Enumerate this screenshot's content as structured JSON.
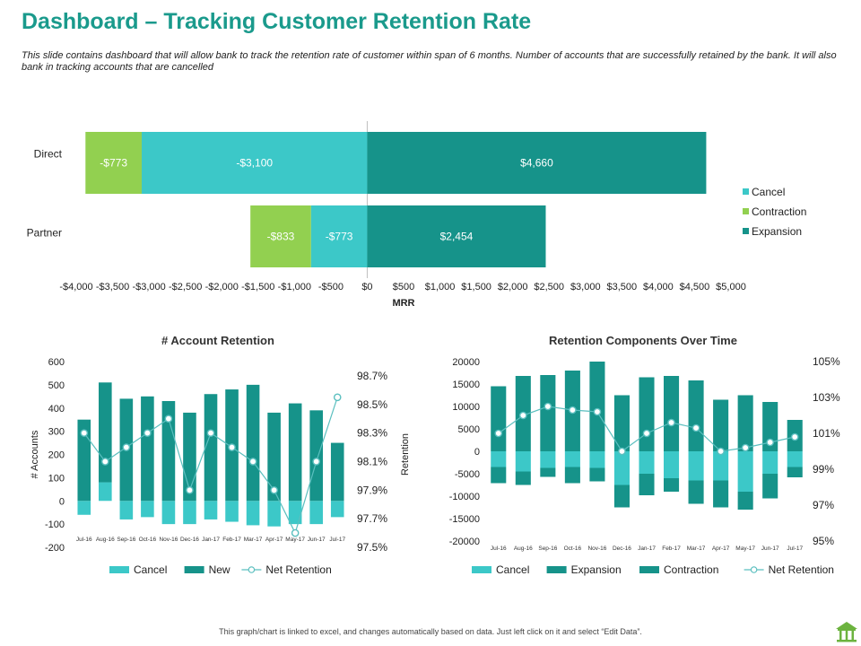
{
  "page": {
    "title": "Dashboard – Tracking Customer Retention Rate",
    "subtitle": "This slide contains dashboard that will allow bank to track the retention rate of customer within span of 6 months. Number of accounts that are successfully retained by the bank. It will also bank in tracking accounts that are cancelled",
    "footer": "This graph/chart is linked to excel, and changes automatically based on data. Just left click on it and select “Edit Data”."
  },
  "colors": {
    "title": "#1a9a8c",
    "cancel": "#3cc8c8",
    "contraction": "#92d050",
    "expansion": "#16938a",
    "new": "#16938a",
    "line": "#5bbfbf",
    "axis": "#bfbfbf"
  },
  "chart_data": [
    {
      "id": "mrr",
      "type": "bar",
      "orientation": "horizontal",
      "stacked": true,
      "title": "",
      "xlabel": "MRR",
      "ylabel": "",
      "categories": [
        "Direct",
        "Partner"
      ],
      "series": [
        {
          "name": "Cancel",
          "color": "#3cc8c8",
          "values": [
            -3100,
            -773
          ],
          "labels": [
            "-$3,100",
            "-$773"
          ]
        },
        {
          "name": "Contraction",
          "color": "#92d050",
          "values": [
            -773,
            -833
          ],
          "labels": [
            "-$773",
            "-$833"
          ]
        },
        {
          "name": "Expansion",
          "color": "#16938a",
          "values": [
            4660,
            2454
          ],
          "labels": [
            "$4,660",
            "$2,454"
          ]
        }
      ],
      "xlim": [
        -4000,
        5000
      ],
      "xticks": [
        -4000,
        -3500,
        -3000,
        -2500,
        -2000,
        -1500,
        -1000,
        -500,
        0,
        500,
        1000,
        1500,
        2000,
        2500,
        3000,
        3500,
        4000,
        4500,
        5000
      ],
      "xtick_labels": [
        "-$4,000",
        "-$3,500",
        "-$3,000",
        "-$2,500",
        "-$2,000",
        "-$1,500",
        "-$1,000",
        "-$500",
        "$0",
        "$500",
        "$1,000",
        "$1,500",
        "$2,000",
        "$2,500",
        "$3,000",
        "$3,500",
        "$4,000",
        "$4,500",
        "$5,000"
      ],
      "legend": [
        "Cancel",
        "Contraction",
        "Expansion"
      ],
      "legend_position": "right"
    },
    {
      "id": "account",
      "type": "bar",
      "title": "# Account Retention",
      "ylabel": "# Accounts",
      "y2label": "Retention",
      "categories": [
        "Jul-16",
        "Aug-16",
        "Sep-16",
        "Oct-16",
        "Nov-16",
        "Dec-16",
        "Jan-17",
        "Feb-17",
        "Mar-17",
        "Apr-17",
        "May-17",
        "Jun-17",
        "Jul-17"
      ],
      "series": [
        {
          "name": "Cancel",
          "type": "bar",
          "axis": "left",
          "color": "#3cc8c8",
          "values": [
            -60,
            80,
            -80,
            -70,
            -100,
            -100,
            -80,
            -90,
            -105,
            -110,
            -100,
            -100,
            -70
          ]
        },
        {
          "name": "New",
          "type": "bar",
          "axis": "left",
          "color": "#16938a",
          "values": [
            350,
            430,
            440,
            450,
            430,
            380,
            460,
            480,
            500,
            380,
            420,
            390,
            250
          ]
        },
        {
          "name": "Net Retention",
          "type": "line",
          "axis": "right",
          "color": "#5bbfbf",
          "values": [
            98.3,
            98.1,
            98.2,
            98.3,
            98.4,
            97.9,
            98.3,
            98.2,
            98.1,
            97.9,
            97.6,
            98.1,
            98.55
          ]
        }
      ],
      "ylim": [
        -200,
        600
      ],
      "yticks": [
        -200,
        -100,
        0,
        100,
        200,
        300,
        400,
        500,
        600
      ],
      "y2lim": [
        97.5,
        98.8
      ],
      "y2ticks": [
        97.5,
        97.7,
        97.9,
        98.1,
        98.3,
        98.5,
        98.7
      ],
      "y2tick_labels": [
        "97.5%",
        "97.7%",
        "97.9%",
        "98.1%",
        "98.3%",
        "98.5%",
        "98.7%"
      ],
      "legend": [
        "Cancel",
        "New",
        "Net Retention"
      ],
      "legend_position": "bottom"
    },
    {
      "id": "components",
      "type": "bar",
      "title": "Retention Components Over Time",
      "categories": [
        "Jul-16",
        "Aug-16",
        "Sep-16",
        "Oct-16",
        "Nov-16",
        "Dec-16",
        "Jan-17",
        "Feb-17",
        "Mar-17",
        "Apr-17",
        "May-17",
        "Jun-17",
        "Jul-17"
      ],
      "series": [
        {
          "name": "Cancel",
          "type": "bar",
          "axis": "left",
          "color": "#3cc8c8",
          "values": [
            -3500,
            -4500,
            -3700,
            -3500,
            -3700,
            -7500,
            -5000,
            -6000,
            -6500,
            -6500,
            -9000,
            -5000,
            -3500
          ]
        },
        {
          "name": "Expansion",
          "type": "bar",
          "axis": "left",
          "color": "#16938a",
          "values": [
            14500,
            16800,
            17000,
            18000,
            20000,
            12500,
            16500,
            16800,
            15800,
            11500,
            12500,
            11000,
            7000
          ]
        },
        {
          "name": "Contraction",
          "type": "bar",
          "axis": "left",
          "color": "#16938a",
          "values": [
            -3600,
            -3000,
            -2000,
            -3600,
            -3000,
            -5000,
            -4800,
            -3000,
            -5200,
            -6000,
            -4000,
            -5500,
            -2300
          ]
        },
        {
          "name": "Net Retention",
          "type": "line",
          "axis": "right",
          "color": "#5bbfbf",
          "values": [
            101.0,
            102.0,
            102.5,
            102.3,
            102.2,
            100.0,
            101.0,
            101.6,
            101.3,
            100.0,
            100.2,
            100.5,
            100.8
          ]
        }
      ],
      "ylim": [
        -20000,
        20000
      ],
      "yticks": [
        -20000,
        -15000,
        -10000,
        -5000,
        0,
        5000,
        10000,
        15000,
        20000
      ],
      "y2lim": [
        95,
        105
      ],
      "y2ticks": [
        95,
        97,
        99,
        101,
        103,
        105
      ],
      "y2tick_labels": [
        "95%",
        "97%",
        "99%",
        "101%",
        "103%",
        "105%"
      ],
      "legend": [
        "Cancel",
        "Expansion",
        "Contraction",
        "Net Retention"
      ],
      "legend_position": "bottom"
    }
  ]
}
